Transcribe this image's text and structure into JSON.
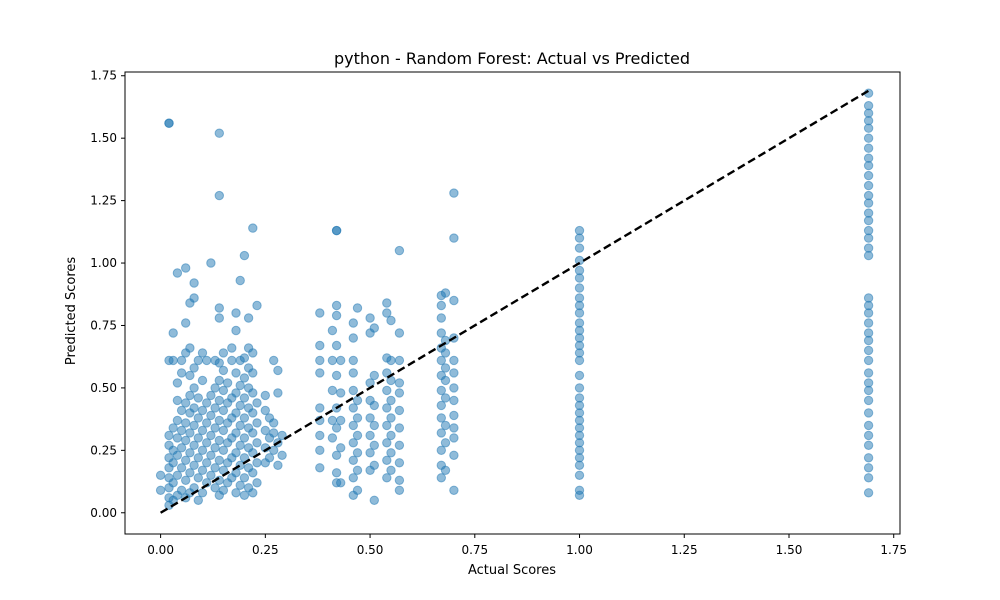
{
  "colors": {
    "point": "#1f77b4",
    "diagonal": "#000000"
  },
  "chart_data": {
    "type": "scatter",
    "title": "python - Random Forest: Actual vs Predicted",
    "xlabel": "Actual Scores",
    "ylabel": "Predicted Scores",
    "xlim": [
      -0.085,
      1.765
    ],
    "ylim": [
      -0.085,
      1.765
    ],
    "xticks": [
      0.0,
      0.25,
      0.5,
      0.75,
      1.0,
      1.25,
      1.5,
      1.75
    ],
    "yticks": [
      0.0,
      0.25,
      0.5,
      0.75,
      1.0,
      1.25,
      1.5,
      1.75
    ],
    "xtick_labels": [
      "0.00",
      "0.25",
      "0.50",
      "0.75",
      "1.00",
      "1.25",
      "1.50",
      "1.75"
    ],
    "ytick_labels": [
      "0.00",
      "0.25",
      "0.50",
      "0.75",
      "1.00",
      "1.25",
      "1.50",
      "1.75"
    ],
    "grid": false,
    "reference_line": {
      "style": "dashed",
      "x": [
        0.0,
        1.69
      ],
      "y": [
        0.0,
        1.69
      ]
    },
    "points": [
      [
        0.0,
        0.15
      ],
      [
        0.0,
        0.09
      ],
      [
        0.02,
        1.56
      ],
      [
        0.02,
        1.56
      ],
      [
        0.02,
        0.61
      ],
      [
        0.03,
        0.72
      ],
      [
        0.03,
        0.61
      ],
      [
        0.04,
        0.96
      ],
      [
        0.05,
        0.61
      ],
      [
        0.06,
        0.76
      ],
      [
        0.06,
        0.98
      ],
      [
        0.07,
        0.84
      ],
      [
        0.08,
        0.92
      ],
      [
        0.08,
        0.86
      ],
      [
        0.12,
        1.0
      ],
      [
        0.14,
        1.52
      ],
      [
        0.14,
        1.27
      ],
      [
        0.14,
        0.82
      ],
      [
        0.14,
        0.78
      ],
      [
        0.18,
        0.8
      ],
      [
        0.18,
        0.73
      ],
      [
        0.19,
        0.93
      ],
      [
        0.2,
        1.03
      ],
      [
        0.21,
        0.78
      ],
      [
        0.22,
        1.14
      ],
      [
        0.23,
        0.83
      ],
      [
        0.27,
        0.61
      ],
      [
        0.02,
        0.03
      ],
      [
        0.02,
        0.06
      ],
      [
        0.02,
        0.1
      ],
      [
        0.02,
        0.14
      ],
      [
        0.02,
        0.18
      ],
      [
        0.02,
        0.22
      ],
      [
        0.02,
        0.27
      ],
      [
        0.02,
        0.31
      ],
      [
        0.03,
        0.05
      ],
      [
        0.03,
        0.12
      ],
      [
        0.03,
        0.2
      ],
      [
        0.03,
        0.25
      ],
      [
        0.03,
        0.34
      ],
      [
        0.04,
        0.07
      ],
      [
        0.04,
        0.15
      ],
      [
        0.04,
        0.23
      ],
      [
        0.04,
        0.3
      ],
      [
        0.04,
        0.37
      ],
      [
        0.04,
        0.45
      ],
      [
        0.04,
        0.52
      ],
      [
        0.05,
        0.09
      ],
      [
        0.05,
        0.18
      ],
      [
        0.05,
        0.26
      ],
      [
        0.05,
        0.33
      ],
      [
        0.05,
        0.41
      ],
      [
        0.05,
        0.56
      ],
      [
        0.06,
        0.06
      ],
      [
        0.06,
        0.13
      ],
      [
        0.06,
        0.21
      ],
      [
        0.06,
        0.29
      ],
      [
        0.06,
        0.36
      ],
      [
        0.06,
        0.44
      ],
      [
        0.06,
        0.64
      ],
      [
        0.07,
        0.08
      ],
      [
        0.07,
        0.16
      ],
      [
        0.07,
        0.24
      ],
      [
        0.07,
        0.32
      ],
      [
        0.07,
        0.4
      ],
      [
        0.07,
        0.47
      ],
      [
        0.07,
        0.55
      ],
      [
        0.07,
        0.66
      ],
      [
        0.08,
        0.1
      ],
      [
        0.08,
        0.19
      ],
      [
        0.08,
        0.27
      ],
      [
        0.08,
        0.35
      ],
      [
        0.08,
        0.42
      ],
      [
        0.08,
        0.5
      ],
      [
        0.08,
        0.58
      ],
      [
        0.09,
        0.05
      ],
      [
        0.09,
        0.14
      ],
      [
        0.09,
        0.22
      ],
      [
        0.09,
        0.3
      ],
      [
        0.09,
        0.38
      ],
      [
        0.09,
        0.46
      ],
      [
        0.09,
        0.61
      ],
      [
        0.1,
        0.08
      ],
      [
        0.1,
        0.17
      ],
      [
        0.1,
        0.25
      ],
      [
        0.1,
        0.33
      ],
      [
        0.1,
        0.41
      ],
      [
        0.1,
        0.53
      ],
      [
        0.1,
        0.64
      ],
      [
        0.11,
        0.12
      ],
      [
        0.11,
        0.2
      ],
      [
        0.11,
        0.28
      ],
      [
        0.11,
        0.36
      ],
      [
        0.11,
        0.44
      ],
      [
        0.11,
        0.61
      ],
      [
        0.12,
        0.15
      ],
      [
        0.12,
        0.23
      ],
      [
        0.12,
        0.31
      ],
      [
        0.12,
        0.39
      ],
      [
        0.12,
        0.47
      ],
      [
        0.13,
        0.1
      ],
      [
        0.13,
        0.18
      ],
      [
        0.13,
        0.26
      ],
      [
        0.13,
        0.34
      ],
      [
        0.13,
        0.42
      ],
      [
        0.13,
        0.5
      ],
      [
        0.13,
        0.61
      ],
      [
        0.14,
        0.07
      ],
      [
        0.14,
        0.13
      ],
      [
        0.14,
        0.21
      ],
      [
        0.14,
        0.29
      ],
      [
        0.14,
        0.37
      ],
      [
        0.14,
        0.45
      ],
      [
        0.14,
        0.53
      ],
      [
        0.14,
        0.6
      ],
      [
        0.15,
        0.09
      ],
      [
        0.15,
        0.17
      ],
      [
        0.15,
        0.25
      ],
      [
        0.15,
        0.33
      ],
      [
        0.15,
        0.41
      ],
      [
        0.15,
        0.49
      ],
      [
        0.15,
        0.57
      ],
      [
        0.15,
        0.64
      ],
      [
        0.16,
        0.12
      ],
      [
        0.16,
        0.2
      ],
      [
        0.16,
        0.28
      ],
      [
        0.16,
        0.36
      ],
      [
        0.16,
        0.44
      ],
      [
        0.16,
        0.52
      ],
      [
        0.17,
        0.14
      ],
      [
        0.17,
        0.22
      ],
      [
        0.17,
        0.3
      ],
      [
        0.17,
        0.38
      ],
      [
        0.17,
        0.46
      ],
      [
        0.17,
        0.61
      ],
      [
        0.17,
        0.66
      ],
      [
        0.18,
        0.08
      ],
      [
        0.18,
        0.16
      ],
      [
        0.18,
        0.24
      ],
      [
        0.18,
        0.32
      ],
      [
        0.18,
        0.4
      ],
      [
        0.18,
        0.48
      ],
      [
        0.18,
        0.56
      ],
      [
        0.19,
        0.11
      ],
      [
        0.19,
        0.19
      ],
      [
        0.19,
        0.27
      ],
      [
        0.19,
        0.35
      ],
      [
        0.19,
        0.43
      ],
      [
        0.19,
        0.51
      ],
      [
        0.19,
        0.61
      ],
      [
        0.2,
        0.07
      ],
      [
        0.2,
        0.14
      ],
      [
        0.2,
        0.22
      ],
      [
        0.2,
        0.3
      ],
      [
        0.2,
        0.38
      ],
      [
        0.2,
        0.46
      ],
      [
        0.2,
        0.54
      ],
      [
        0.2,
        0.62
      ],
      [
        0.21,
        0.1
      ],
      [
        0.21,
        0.18
      ],
      [
        0.21,
        0.26
      ],
      [
        0.21,
        0.34
      ],
      [
        0.21,
        0.42
      ],
      [
        0.21,
        0.5
      ],
      [
        0.21,
        0.58
      ],
      [
        0.21,
        0.66
      ],
      [
        0.22,
        0.08
      ],
      [
        0.22,
        0.16
      ],
      [
        0.22,
        0.24
      ],
      [
        0.22,
        0.32
      ],
      [
        0.22,
        0.4
      ],
      [
        0.22,
        0.48
      ],
      [
        0.22,
        0.56
      ],
      [
        0.22,
        0.64
      ],
      [
        0.23,
        0.12
      ],
      [
        0.23,
        0.2
      ],
      [
        0.23,
        0.28
      ],
      [
        0.23,
        0.36
      ],
      [
        0.23,
        0.44
      ],
      [
        0.25,
        0.2
      ],
      [
        0.25,
        0.26
      ],
      [
        0.25,
        0.33
      ],
      [
        0.25,
        0.41
      ],
      [
        0.25,
        0.47
      ],
      [
        0.26,
        0.22
      ],
      [
        0.26,
        0.3
      ],
      [
        0.26,
        0.38
      ],
      [
        0.27,
        0.25
      ],
      [
        0.27,
        0.32
      ],
      [
        0.27,
        0.36
      ],
      [
        0.28,
        0.19
      ],
      [
        0.28,
        0.28
      ],
      [
        0.28,
        0.48
      ],
      [
        0.28,
        0.57
      ],
      [
        0.29,
        0.23
      ],
      [
        0.29,
        0.31
      ],
      [
        0.38,
        0.18
      ],
      [
        0.38,
        0.25
      ],
      [
        0.38,
        0.31
      ],
      [
        0.38,
        0.37
      ],
      [
        0.38,
        0.42
      ],
      [
        0.38,
        0.56
      ],
      [
        0.38,
        0.61
      ],
      [
        0.38,
        0.67
      ],
      [
        0.38,
        0.8
      ],
      [
        0.41,
        0.3
      ],
      [
        0.41,
        0.37
      ],
      [
        0.41,
        0.49
      ],
      [
        0.41,
        0.61
      ],
      [
        0.41,
        0.73
      ],
      [
        0.42,
        1.13
      ],
      [
        0.42,
        1.13
      ],
      [
        0.42,
        0.12
      ],
      [
        0.42,
        0.16
      ],
      [
        0.42,
        0.23
      ],
      [
        0.42,
        0.34
      ],
      [
        0.42,
        0.42
      ],
      [
        0.42,
        0.55
      ],
      [
        0.42,
        0.67
      ],
      [
        0.42,
        0.79
      ],
      [
        0.42,
        0.83
      ],
      [
        0.43,
        0.12
      ],
      [
        0.43,
        0.26
      ],
      [
        0.43,
        0.37
      ],
      [
        0.43,
        0.48
      ],
      [
        0.43,
        0.61
      ],
      [
        0.46,
        0.07
      ],
      [
        0.46,
        0.14
      ],
      [
        0.46,
        0.21
      ],
      [
        0.46,
        0.28
      ],
      [
        0.46,
        0.35
      ],
      [
        0.46,
        0.42
      ],
      [
        0.46,
        0.49
      ],
      [
        0.46,
        0.56
      ],
      [
        0.46,
        0.61
      ],
      [
        0.46,
        0.7
      ],
      [
        0.46,
        0.76
      ],
      [
        0.47,
        0.09
      ],
      [
        0.47,
        0.17
      ],
      [
        0.47,
        0.24
      ],
      [
        0.47,
        0.31
      ],
      [
        0.47,
        0.38
      ],
      [
        0.47,
        0.45
      ],
      [
        0.47,
        0.82
      ],
      [
        0.5,
        0.17
      ],
      [
        0.5,
        0.24
      ],
      [
        0.5,
        0.31
      ],
      [
        0.5,
        0.38
      ],
      [
        0.5,
        0.45
      ],
      [
        0.5,
        0.52
      ],
      [
        0.5,
        0.72
      ],
      [
        0.5,
        0.78
      ],
      [
        0.51,
        0.05
      ],
      [
        0.51,
        0.19
      ],
      [
        0.51,
        0.27
      ],
      [
        0.51,
        0.35
      ],
      [
        0.51,
        0.43
      ],
      [
        0.51,
        0.55
      ],
      [
        0.51,
        0.74
      ],
      [
        0.54,
        0.14
      ],
      [
        0.54,
        0.21
      ],
      [
        0.54,
        0.28
      ],
      [
        0.54,
        0.35
      ],
      [
        0.54,
        0.42
      ],
      [
        0.54,
        0.49
      ],
      [
        0.54,
        0.56
      ],
      [
        0.54,
        0.62
      ],
      [
        0.54,
        0.8
      ],
      [
        0.54,
        0.84
      ],
      [
        0.55,
        0.17
      ],
      [
        0.55,
        0.24
      ],
      [
        0.55,
        0.31
      ],
      [
        0.55,
        0.38
      ],
      [
        0.55,
        0.45
      ],
      [
        0.55,
        0.53
      ],
      [
        0.55,
        0.61
      ],
      [
        0.55,
        0.77
      ],
      [
        0.57,
        0.09
      ],
      [
        0.57,
        0.13
      ],
      [
        0.57,
        0.2
      ],
      [
        0.57,
        0.27
      ],
      [
        0.57,
        0.34
      ],
      [
        0.57,
        0.41
      ],
      [
        0.57,
        0.48
      ],
      [
        0.57,
        0.52
      ],
      [
        0.57,
        0.61
      ],
      [
        0.57,
        0.72
      ],
      [
        0.57,
        1.05
      ],
      [
        0.67,
        0.14
      ],
      [
        0.67,
        0.19
      ],
      [
        0.67,
        0.25
      ],
      [
        0.67,
        0.32
      ],
      [
        0.67,
        0.38
      ],
      [
        0.67,
        0.43
      ],
      [
        0.67,
        0.49
      ],
      [
        0.67,
        0.55
      ],
      [
        0.67,
        0.61
      ],
      [
        0.67,
        0.66
      ],
      [
        0.67,
        0.72
      ],
      [
        0.67,
        0.78
      ],
      [
        0.67,
        0.83
      ],
      [
        0.67,
        0.87
      ],
      [
        0.68,
        0.17
      ],
      [
        0.68,
        0.28
      ],
      [
        0.68,
        0.35
      ],
      [
        0.68,
        0.46
      ],
      [
        0.68,
        0.53
      ],
      [
        0.68,
        0.58
      ],
      [
        0.68,
        0.64
      ],
      [
        0.68,
        0.69
      ],
      [
        0.68,
        0.88
      ],
      [
        0.7,
        0.09
      ],
      [
        0.7,
        0.23
      ],
      [
        0.7,
        0.3
      ],
      [
        0.7,
        0.34
      ],
      [
        0.7,
        0.39
      ],
      [
        0.7,
        0.45
      ],
      [
        0.7,
        0.5
      ],
      [
        0.7,
        0.56
      ],
      [
        0.7,
        0.61
      ],
      [
        0.7,
        0.7
      ],
      [
        0.7,
        0.85
      ],
      [
        0.7,
        1.1
      ],
      [
        0.7,
        1.28
      ],
      [
        1.0,
        0.07
      ],
      [
        1.0,
        0.09
      ],
      [
        1.0,
        0.15
      ],
      [
        1.0,
        0.19
      ],
      [
        1.0,
        0.22
      ],
      [
        1.0,
        0.25
      ],
      [
        1.0,
        0.28
      ],
      [
        1.0,
        0.31
      ],
      [
        1.0,
        0.34
      ],
      [
        1.0,
        0.37
      ],
      [
        1.0,
        0.4
      ],
      [
        1.0,
        0.43
      ],
      [
        1.0,
        0.46
      ],
      [
        1.0,
        0.5
      ],
      [
        1.0,
        0.55
      ],
      [
        1.0,
        0.61
      ],
      [
        1.0,
        0.64
      ],
      [
        1.0,
        0.67
      ],
      [
        1.0,
        0.7
      ],
      [
        1.0,
        0.73
      ],
      [
        1.0,
        0.76
      ],
      [
        1.0,
        0.8
      ],
      [
        1.0,
        0.83
      ],
      [
        1.0,
        0.86
      ],
      [
        1.0,
        0.9
      ],
      [
        1.0,
        0.94
      ],
      [
        1.0,
        0.97
      ],
      [
        1.0,
        1.01
      ],
      [
        1.0,
        1.06
      ],
      [
        1.0,
        1.1
      ],
      [
        1.0,
        1.13
      ],
      [
        1.69,
        0.08
      ],
      [
        1.69,
        0.14
      ],
      [
        1.69,
        0.18
      ],
      [
        1.69,
        0.22
      ],
      [
        1.69,
        0.27
      ],
      [
        1.69,
        0.31
      ],
      [
        1.69,
        0.35
      ],
      [
        1.69,
        0.4
      ],
      [
        1.69,
        0.45
      ],
      [
        1.69,
        0.49
      ],
      [
        1.69,
        0.52
      ],
      [
        1.69,
        0.56
      ],
      [
        1.69,
        0.61
      ],
      [
        1.69,
        0.65
      ],
      [
        1.69,
        0.69
      ],
      [
        1.69,
        0.72
      ],
      [
        1.69,
        0.76
      ],
      [
        1.69,
        0.8
      ],
      [
        1.69,
        0.83
      ],
      [
        1.69,
        0.86
      ],
      [
        1.69,
        1.03
      ],
      [
        1.69,
        1.06
      ],
      [
        1.69,
        1.1
      ],
      [
        1.69,
        1.13
      ],
      [
        1.69,
        1.17
      ],
      [
        1.69,
        1.2
      ],
      [
        1.69,
        1.24
      ],
      [
        1.69,
        1.27
      ],
      [
        1.69,
        1.31
      ],
      [
        1.69,
        1.35
      ],
      [
        1.69,
        1.39
      ],
      [
        1.69,
        1.42
      ],
      [
        1.69,
        1.46
      ],
      [
        1.69,
        1.5
      ],
      [
        1.69,
        1.54
      ],
      [
        1.69,
        1.57
      ],
      [
        1.69,
        1.6
      ],
      [
        1.69,
        1.63
      ],
      [
        1.69,
        1.68
      ]
    ]
  }
}
